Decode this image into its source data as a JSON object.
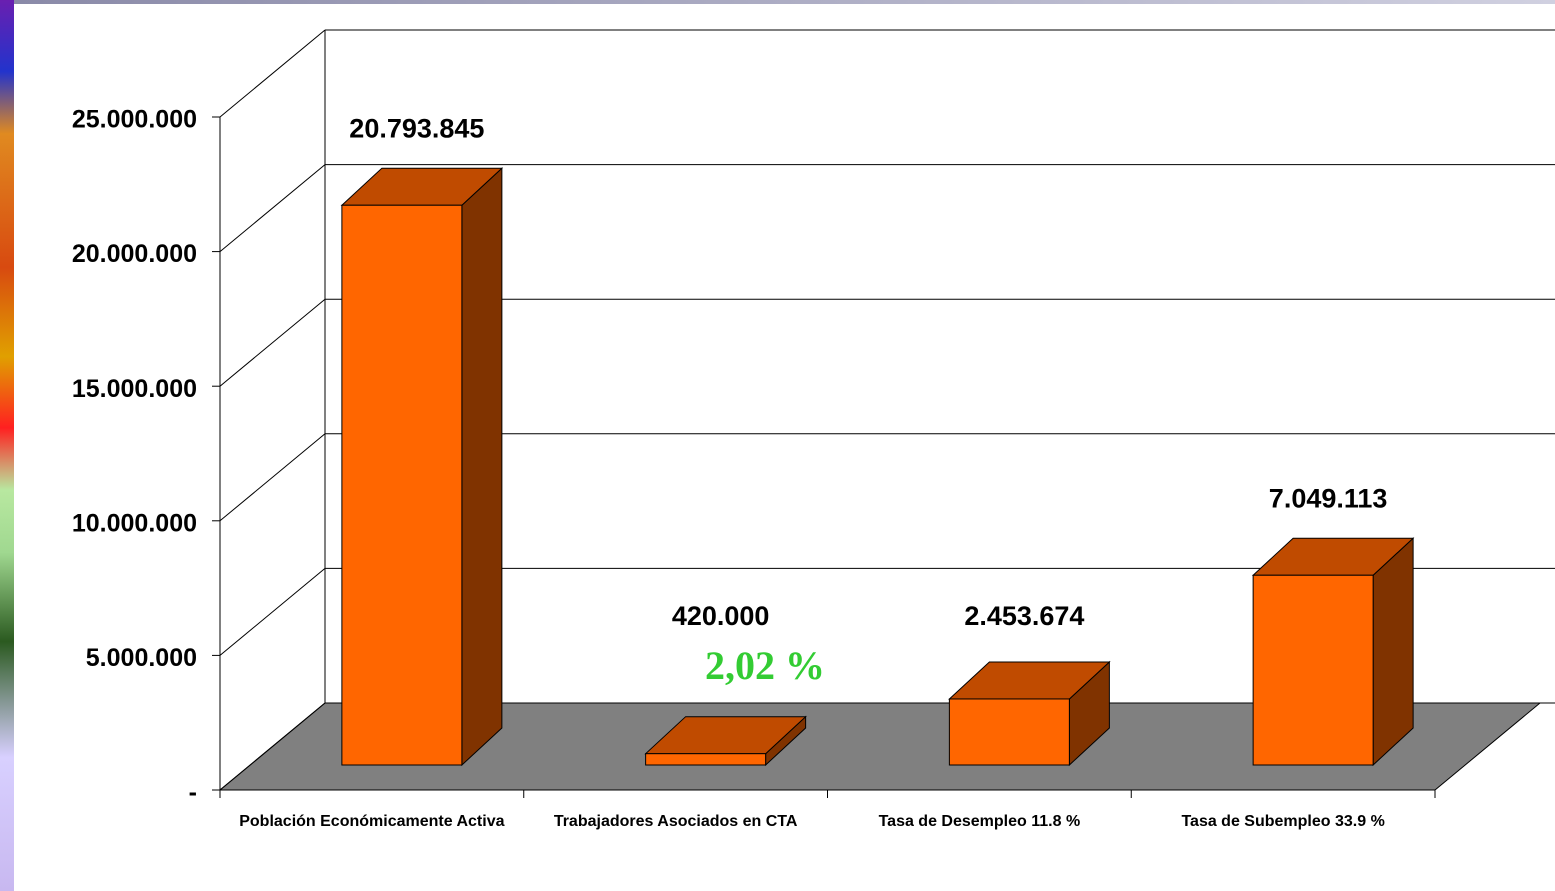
{
  "chart_data": {
    "type": "bar3d",
    "categories": [
      "Población Económicamente Activa",
      "Trabajadores Asociados en CTA",
      "Tasa de Desempleo  11.8 %",
      "Tasa de Subempleo 33.9 %"
    ],
    "values": [
      20793845,
      420000,
      2453674,
      7049113
    ],
    "value_labels": [
      "20.793.845",
      "420.000",
      "2.453.674",
      "7.049.113"
    ],
    "annotation": "2,02 %",
    "color": "#ff6600",
    "ylim": [
      0,
      25000000
    ],
    "yticks": [
      {
        "value": 0,
        "label": "-"
      },
      {
        "value": 5000000,
        "label": "5.000.000"
      },
      {
        "value": 10000000,
        "label": "10.000.000"
      },
      {
        "value": 15000000,
        "label": "15.000.000"
      },
      {
        "value": 20000000,
        "label": "20.000.000"
      },
      {
        "value": 25000000,
        "label": "25.000.000"
      }
    ],
    "grid": true
  }
}
